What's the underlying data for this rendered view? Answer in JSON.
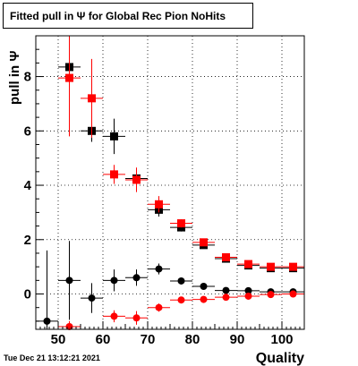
{
  "title": "Fitted pull in  Ψ  for Global Rec Pion NoHits",
  "footer": "Tue Dec 21 13:12:21 2021",
  "chart_data": {
    "type": "scatter",
    "title": "Fitted pull in  Ψ  for Global Rec Pion NoHits",
    "xlabel": "Quality",
    "ylabel": "pull in  Ψ",
    "xlim": [
      45,
      105
    ],
    "ylim": [
      -1.3,
      9.5
    ],
    "xticks": [
      50,
      60,
      70,
      80,
      90,
      100
    ],
    "yticks": [
      0,
      2,
      4,
      6,
      8
    ],
    "grid": true,
    "series": [
      {
        "marker": "square",
        "color": "#000000",
        "points": [
          {
            "x": 52.5,
            "y": 8.35,
            "ey": 0.3
          },
          {
            "x": 57.5,
            "y": 6.0,
            "ey": 0.4
          },
          {
            "x": 62.5,
            "y": 5.8,
            "ey": 0.65
          },
          {
            "x": 67.5,
            "y": 4.25,
            "ey": 0.35
          },
          {
            "x": 72.5,
            "y": 3.1,
            "ey": 0.25
          },
          {
            "x": 77.5,
            "y": 2.45,
            "ey": 0.15
          },
          {
            "x": 82.5,
            "y": 1.8,
            "ey": 0.1
          },
          {
            "x": 87.5,
            "y": 1.3,
            "ey": 0.08
          },
          {
            "x": 92.5,
            "y": 1.05,
            "ey": 0.07
          },
          {
            "x": 97.5,
            "y": 0.95,
            "ey": 0.07
          },
          {
            "x": 102.5,
            "y": 0.95,
            "ey": 0.07
          }
        ]
      },
      {
        "marker": "square",
        "color": "#ff0000",
        "points": [
          {
            "x": 52.5,
            "y": 7.95,
            "ey": 2.15
          },
          {
            "x": 57.5,
            "y": 7.2,
            "ey": 1.45
          },
          {
            "x": 62.5,
            "y": 4.4,
            "ey": 0.35
          },
          {
            "x": 67.5,
            "y": 4.2,
            "ey": 0.45
          },
          {
            "x": 72.5,
            "y": 3.3,
            "ey": 0.3
          },
          {
            "x": 77.5,
            "y": 2.6,
            "ey": 0.15
          },
          {
            "x": 82.5,
            "y": 1.9,
            "ey": 0.1
          },
          {
            "x": 87.5,
            "y": 1.35,
            "ey": 0.08
          },
          {
            "x": 92.5,
            "y": 1.1,
            "ey": 0.07
          },
          {
            "x": 97.5,
            "y": 1.0,
            "ey": 0.07
          },
          {
            "x": 102.5,
            "y": 1.0,
            "ey": 0.07
          }
        ]
      },
      {
        "marker": "circle",
        "color": "#000000",
        "points": [
          {
            "x": 47.5,
            "y": -1.0,
            "ey": 2.6
          },
          {
            "x": 52.5,
            "y": 0.5,
            "ey": 1.45
          },
          {
            "x": 57.5,
            "y": -0.15,
            "ey": 0.55
          },
          {
            "x": 62.5,
            "y": 0.5,
            "ey": 0.4
          },
          {
            "x": 67.5,
            "y": 0.6,
            "ey": 0.3
          },
          {
            "x": 72.5,
            "y": 0.92,
            "ey": 0.2
          },
          {
            "x": 77.5,
            "y": 0.48,
            "ey": 0.12
          },
          {
            "x": 82.5,
            "y": 0.28,
            "ey": 0.1
          },
          {
            "x": 87.5,
            "y": 0.13,
            "ey": 0.08
          },
          {
            "x": 92.5,
            "y": 0.12,
            "ey": 0.07
          },
          {
            "x": 97.5,
            "y": 0.08,
            "ey": 0.07
          },
          {
            "x": 102.5,
            "y": 0.08,
            "ey": 0.07
          }
        ]
      },
      {
        "marker": "circle",
        "color": "#ff0000",
        "points": [
          {
            "x": 52.5,
            "y": -1.2,
            "ey": 0.2
          },
          {
            "x": 62.5,
            "y": -0.82,
            "ey": 0.22
          },
          {
            "x": 67.5,
            "y": -0.88,
            "ey": 0.25
          },
          {
            "x": 72.5,
            "y": -0.5,
            "ey": 0.15
          },
          {
            "x": 77.5,
            "y": -0.22,
            "ey": 0.1
          },
          {
            "x": 82.5,
            "y": -0.2,
            "ey": 0.08
          },
          {
            "x": 87.5,
            "y": -0.12,
            "ey": 0.07
          },
          {
            "x": 92.5,
            "y": -0.08,
            "ey": 0.06
          },
          {
            "x": 97.5,
            "y": -0.02,
            "ey": 0.06
          },
          {
            "x": 102.5,
            "y": 0.0,
            "ey": 0.06
          }
        ]
      }
    ]
  }
}
